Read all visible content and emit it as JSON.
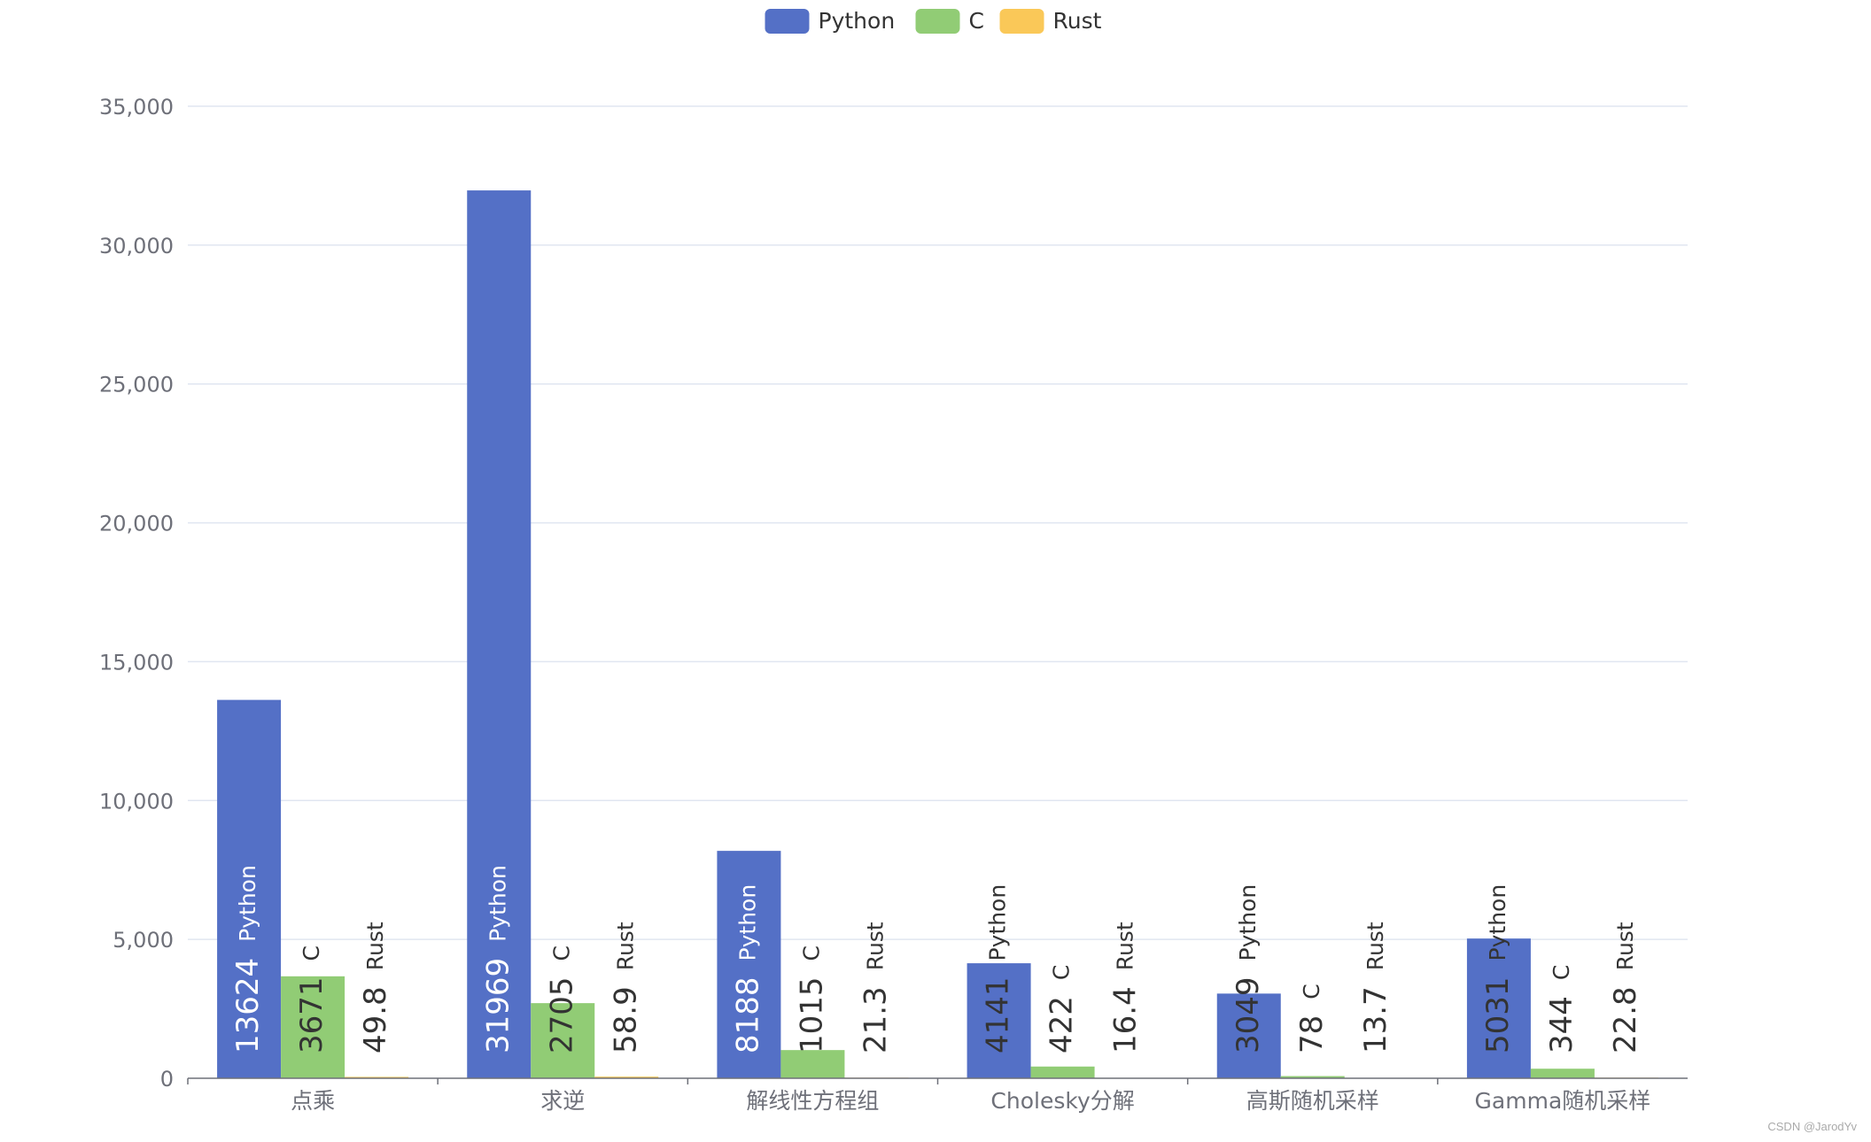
{
  "chart_data": {
    "type": "bar",
    "categories": [
      "点乘",
      "求逆",
      "解线性方程组",
      "Cholesky分解",
      "高斯随机采样",
      "Gamma随机采样"
    ],
    "series": [
      {
        "name": "Python",
        "color": "#5470c6",
        "values": [
          13624,
          31969,
          8188,
          4141,
          3049,
          5031
        ]
      },
      {
        "name": "C",
        "color": "#91cc75",
        "values": [
          3671,
          2705,
          1015,
          422,
          78,
          344
        ]
      },
      {
        "name": "Rust",
        "color": "#fac858",
        "values": [
          49.8,
          58.9,
          21.3,
          16.4,
          13.7,
          22.8
        ]
      }
    ],
    "ylim": [
      0,
      35000
    ],
    "yticks": [
      0,
      5000,
      10000,
      15000,
      20000,
      25000,
      30000,
      35000
    ],
    "ytick_labels": [
      "0",
      "5,000",
      "10,000",
      "15,000",
      "20,000",
      "25,000",
      "30,000",
      "35,000"
    ],
    "legend_position": "top-center",
    "grid": true,
    "data_labels": "value and series name, rotated vertically"
  },
  "watermark": "CSDN @JarodYv"
}
